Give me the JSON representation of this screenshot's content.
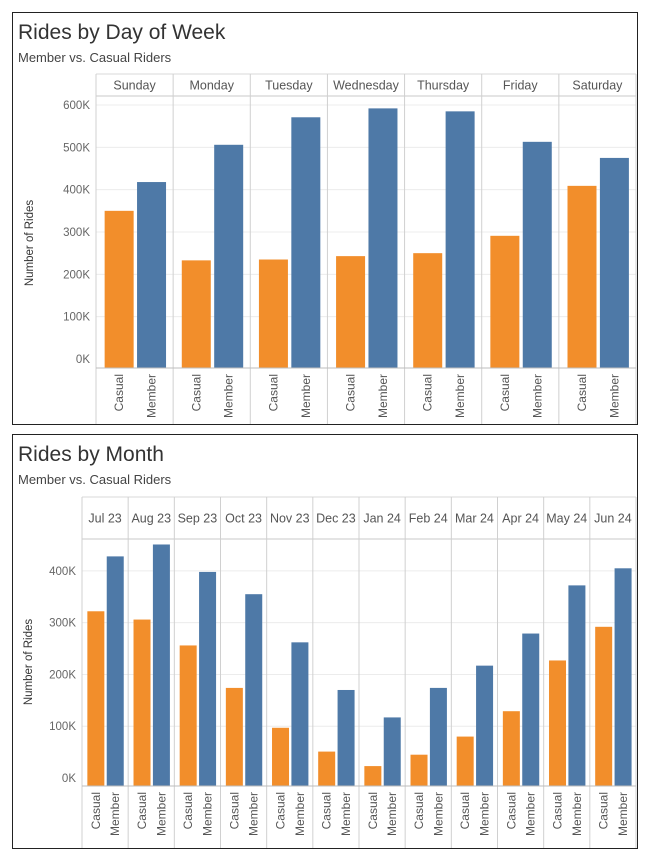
{
  "colors": {
    "casual": "#f28e2b",
    "member": "#4e79a7"
  },
  "chart_data": [
    {
      "type": "bar",
      "title": "Rides by Day of Week",
      "subtitle": "Member vs. Casual Riders",
      "ylabel": "Number of Rides",
      "ylim": [
        0,
        600000
      ],
      "yticks": [
        {
          "value": 0,
          "label": "0K"
        },
        {
          "value": 100000,
          "label": "100K"
        },
        {
          "value": 200000,
          "label": "200K"
        },
        {
          "value": 300000,
          "label": "300K"
        },
        {
          "value": 400000,
          "label": "400K"
        },
        {
          "value": 500000,
          "label": "500K"
        },
        {
          "value": 600000,
          "label": "600K"
        }
      ],
      "groups": [
        "Sunday",
        "Monday",
        "Tuesday",
        "Wednesday",
        "Thursday",
        "Friday",
        "Saturday"
      ],
      "subcategories": [
        "Casual",
        "Member"
      ],
      "series": [
        {
          "name": "Casual",
          "values": [
            350000,
            233000,
            235000,
            243000,
            250000,
            291000,
            409000
          ]
        },
        {
          "name": "Member",
          "values": [
            418000,
            506000,
            571000,
            592000,
            585000,
            513000,
            475000
          ]
        }
      ],
      "grid": true,
      "legend": "none"
    },
    {
      "type": "bar",
      "title": "Rides by Month",
      "subtitle": "Member vs. Casual Riders",
      "ylabel": "Number of Rides",
      "ylim": [
        0,
        450000
      ],
      "yticks": [
        {
          "value": 0,
          "label": "0K"
        },
        {
          "value": 100000,
          "label": "100K"
        },
        {
          "value": 200000,
          "label": "200K"
        },
        {
          "value": 300000,
          "label": "300K"
        },
        {
          "value": 400000,
          "label": "400K"
        }
      ],
      "groups": [
        "Jul 23",
        "Aug 23",
        "Sep 23",
        "Oct 23",
        "Nov 23",
        "Dec 23",
        "Jan 24",
        "Feb 24",
        "Mar 24",
        "Apr 24",
        "May 24",
        "Jun 24"
      ],
      "subcategories": [
        "Casual",
        "Member"
      ],
      "series": [
        {
          "name": "Casual",
          "values": [
            322000,
            306000,
            256000,
            174000,
            97000,
            51000,
            23000,
            45000,
            80000,
            129000,
            227000,
            292000
          ]
        },
        {
          "name": "Member",
          "values": [
            428000,
            451000,
            398000,
            355000,
            262000,
            170000,
            117000,
            174000,
            217000,
            279000,
            372000,
            405000
          ]
        }
      ],
      "grid": true,
      "legend": "none"
    }
  ]
}
